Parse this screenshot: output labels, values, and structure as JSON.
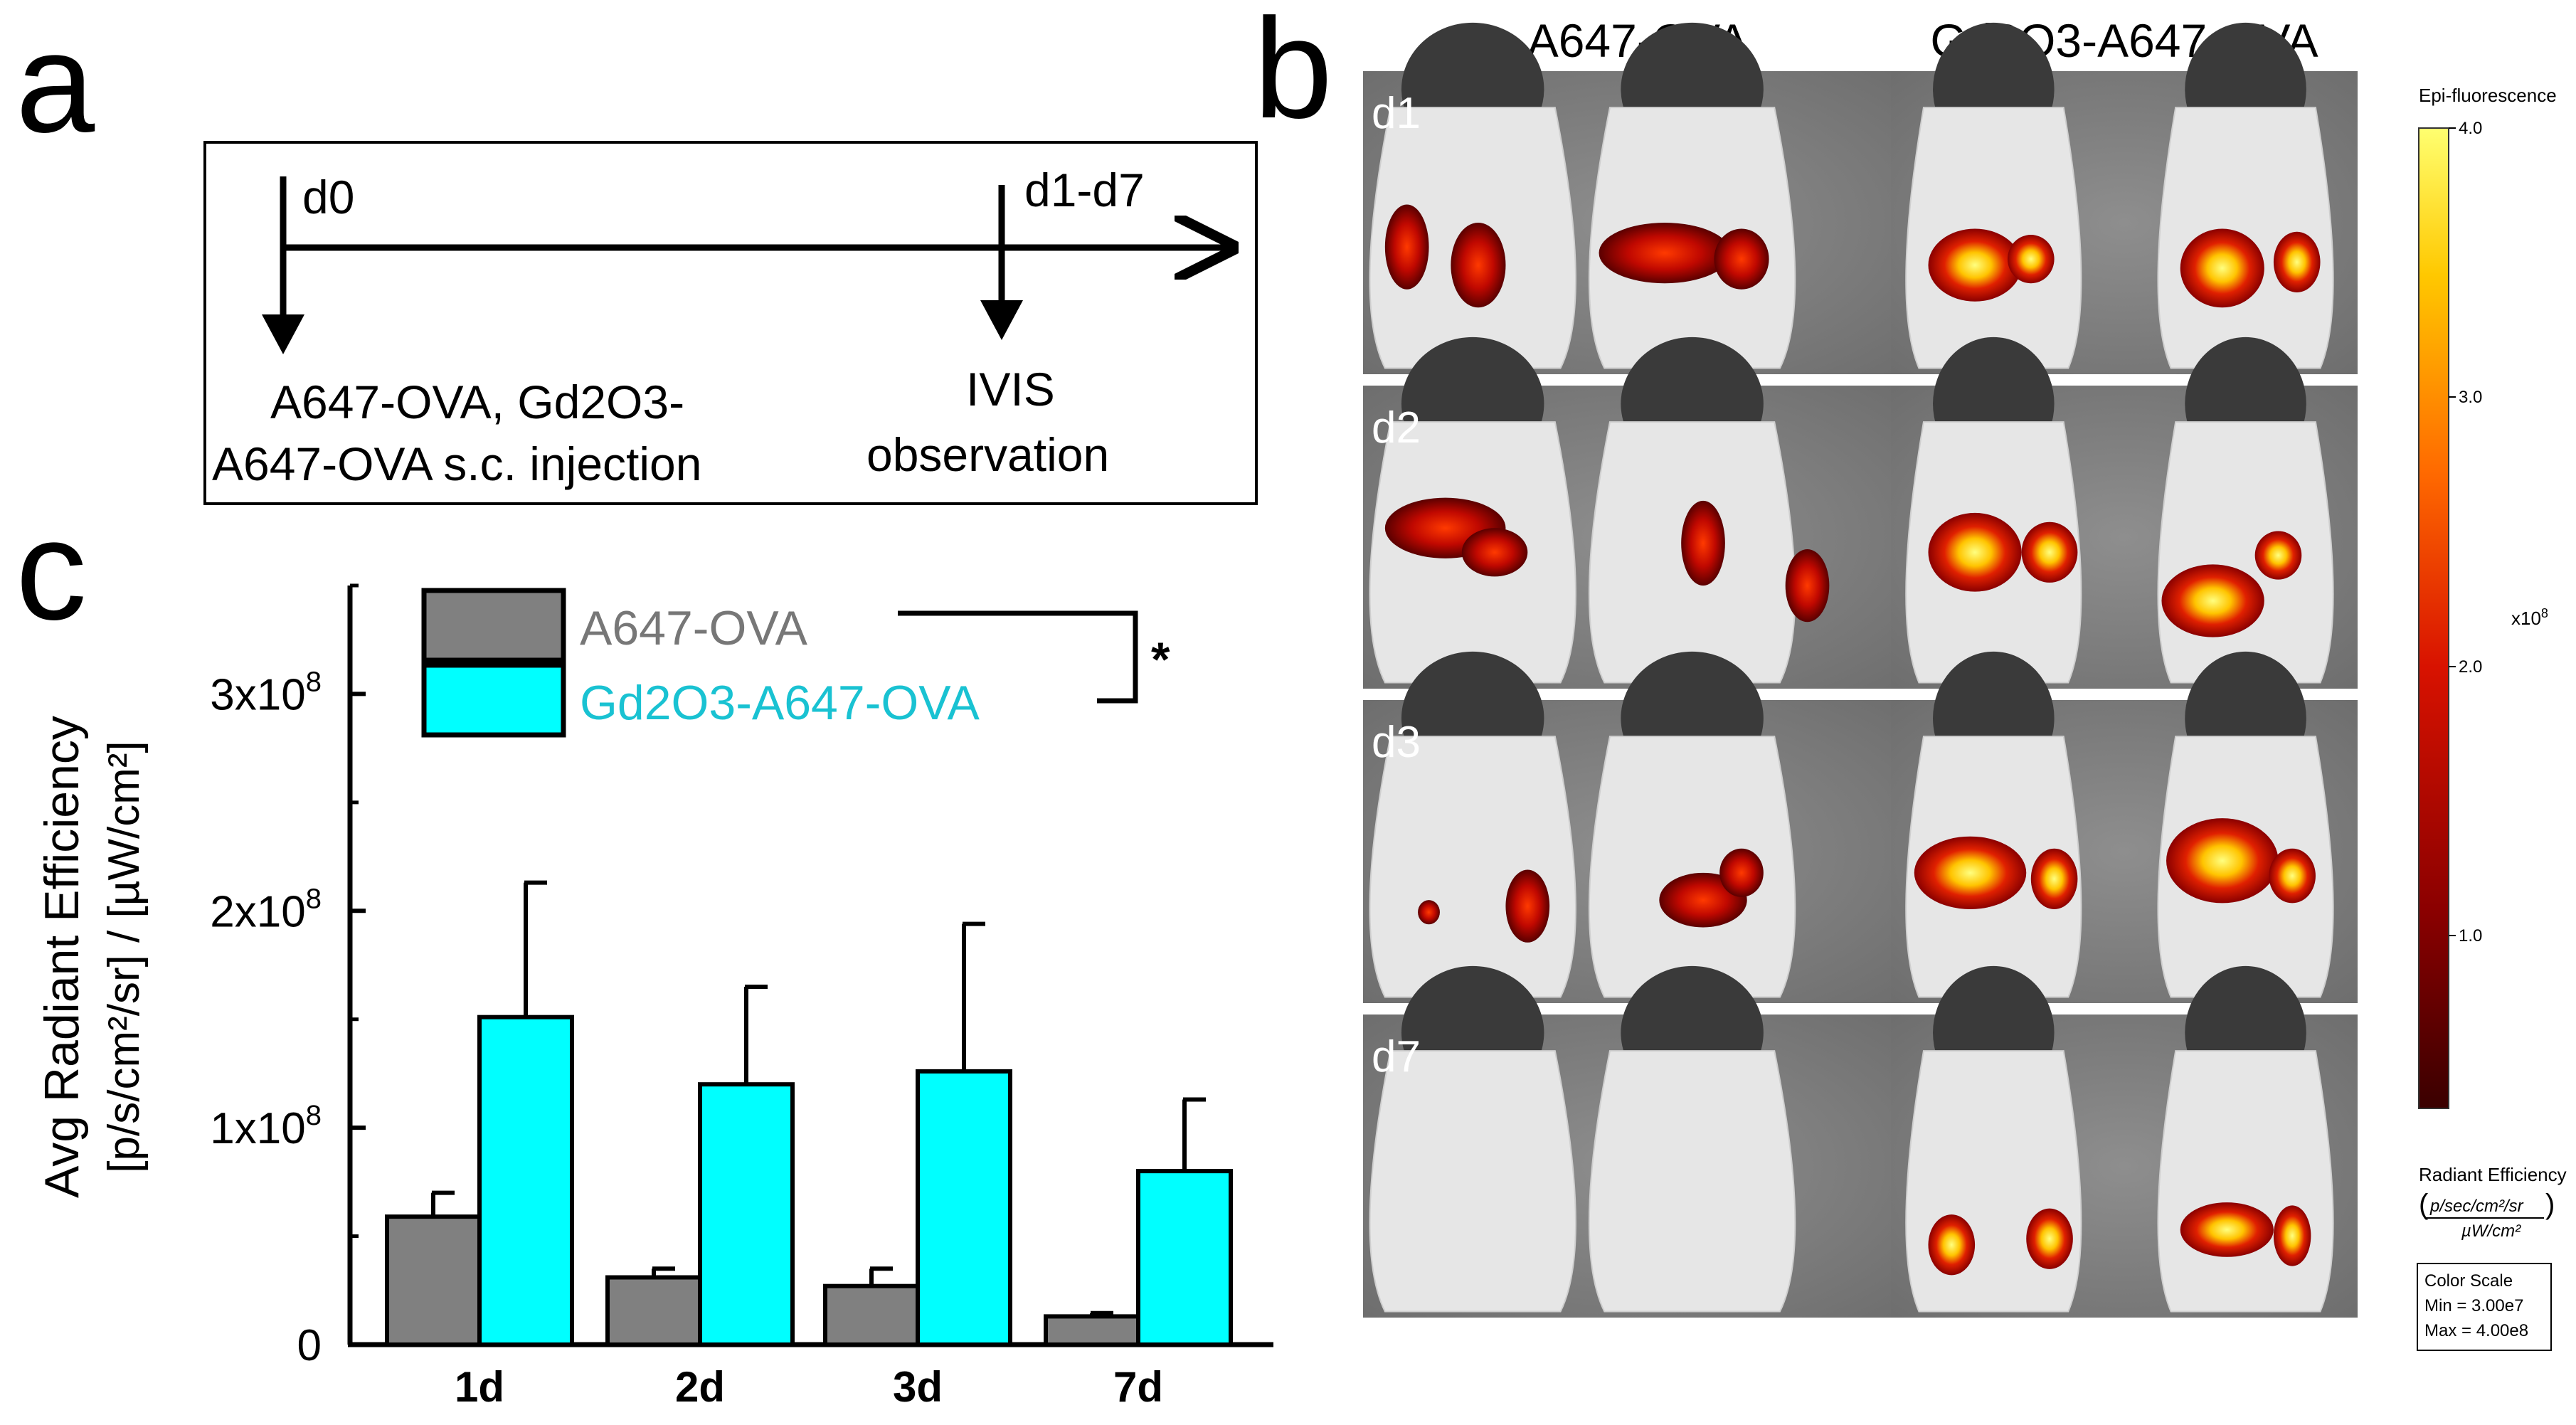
{
  "panels": {
    "a": {
      "letter": "a",
      "start_label": "d0",
      "end_label": "d1-d7",
      "injection_line1": "A647-OVA, Gd2O3-",
      "injection_line2": "A647-OVA s.c. injection",
      "ivis_line1": "IVIS",
      "ivis_line2": "observation"
    },
    "b": {
      "letter": "b",
      "col_headers": [
        "A647-OVA",
        "Gd2O3-A647-OVA"
      ],
      "row_labels": [
        "d1",
        "d2",
        "d3",
        "d7"
      ],
      "colorbar": {
        "title": "Epi-fluorescence",
        "ticks": [
          "4.0",
          "3.0",
          "2.0",
          "1.0"
        ],
        "multiplier": "x10^8",
        "unit_title": "Radiant Efficiency",
        "unit_numerator": "p/sec/cm²/sr",
        "unit_denominator": "µW/cm²",
        "scale_title": "Color Scale",
        "scale_min": "Min = 3.00e7",
        "scale_max": "Max = 4.00e8",
        "colors": [
          "#3a0000",
          "#8a0000",
          "#d81200",
          "#ff6a00",
          "#ffc800",
          "#ffff70"
        ]
      }
    },
    "c": {
      "letter": "c"
    }
  },
  "chart_data": {
    "type": "bar",
    "categories": [
      "1d",
      "2d",
      "3d",
      "7d"
    ],
    "ylabel_line1": "Avg Radiant Efficiency",
    "ylabel_line2": "[p/s/cm²/sr] / [µW/cm²]",
    "ytick_labels": [
      "0",
      "1x10^8",
      "2x10^8",
      "3x10^8"
    ],
    "ylim": [
      0,
      350000000
    ],
    "significance": "*",
    "series": [
      {
        "name": "A647-OVA",
        "color": "#808080",
        "legend_color": "#777777",
        "values": [
          59000000,
          31000000,
          27000000,
          13000000
        ],
        "errors": [
          11000000,
          4000000,
          8000000,
          1500000
        ]
      },
      {
        "name": "Gd2O3-A647-OVA",
        "color": "#00ffff",
        "legend_color": "#19c2d2",
        "values": [
          151000000,
          120000000,
          126000000,
          80000000
        ],
        "errors": [
          62000000,
          45000000,
          68000000,
          33000000
        ]
      }
    ]
  }
}
